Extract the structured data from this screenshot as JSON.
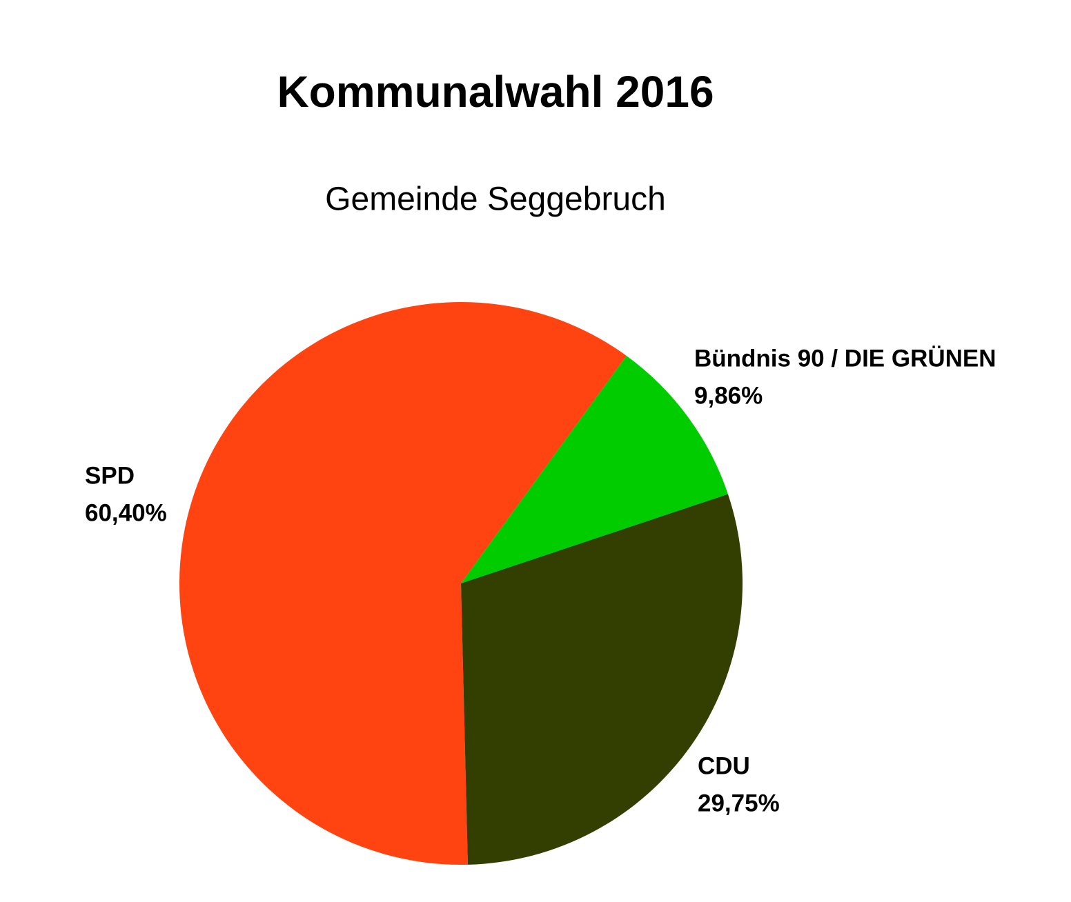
{
  "chart_data": {
    "type": "pie",
    "title": "Kommunalwahl 2016",
    "subtitle": "Gemeinde Seggebruch",
    "categories": [
      "SPD",
      "Bündnis 90 / DIE GRÜNEN",
      "CDU"
    ],
    "values": [
      60.4,
      9.86,
      29.75
    ],
    "value_labels": [
      "60,40%",
      "9,86%",
      "29,75%"
    ],
    "colors": [
      "#ff4411",
      "#00cc00",
      "#333f00"
    ]
  }
}
